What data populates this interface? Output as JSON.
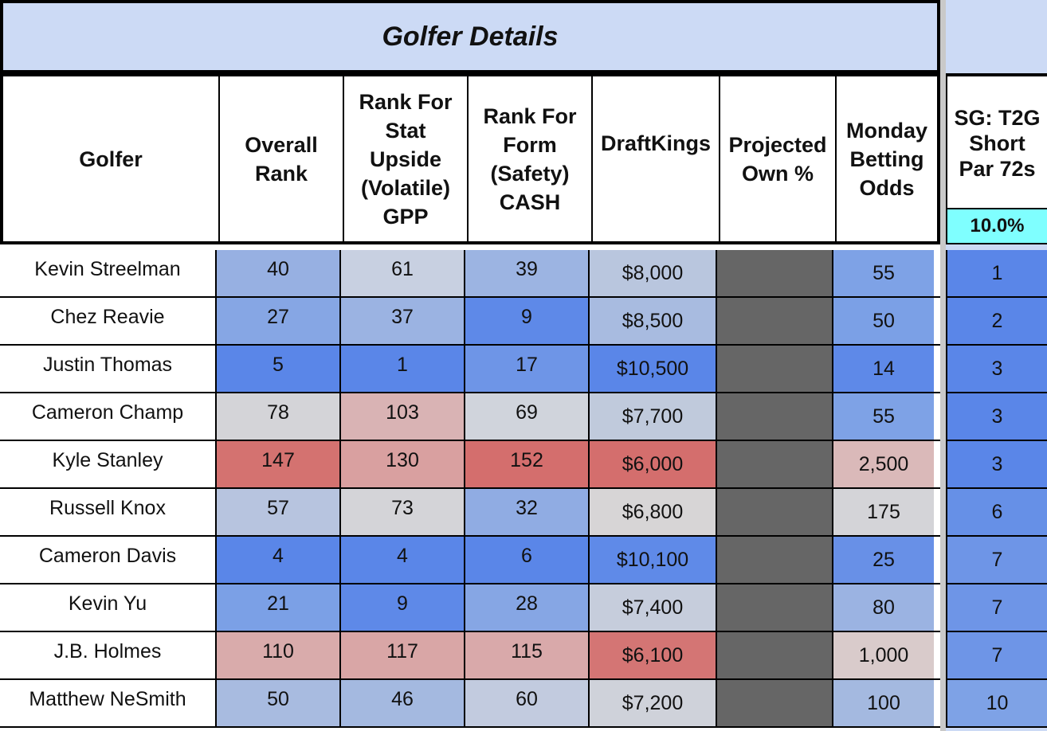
{
  "title": "Golfer Details",
  "headers": {
    "golfer": "Golfer",
    "overall_rank": "Overall Rank",
    "stat_upside": "Rank For Stat Upside (Volatile) GPP",
    "form_safety": "Rank For Form (Safety) CASH",
    "draftkings": "DraftKings",
    "projected_own": "Projected Own %",
    "betting_odds": "Monday Betting Odds",
    "sg_t2g": "SG: T2G Short Par 72s",
    "sg_weight": "10.0%"
  },
  "colors": {
    "blue_strong": "#5a86e8",
    "blue_mid": "#7ea2e6",
    "blue_light": "#a4b9e0",
    "neutral": "#d4d4d8",
    "red_light": "#d9a9aa",
    "red_strong": "#d46e6d",
    "own_gray": "#666666"
  },
  "rows": [
    {
      "golfer": "Kevin Streelman",
      "overall": "40",
      "upside": "61",
      "form": "39",
      "dk": "$8,000",
      "odds": "55",
      "sg": "1",
      "c": [
        "#97b0e2",
        "#c8d0e1",
        "#9cb4e2",
        "#b9c6de",
        "#7ea2e6",
        "#5a86e8"
      ]
    },
    {
      "golfer": "Chez Reavie",
      "overall": "27",
      "upside": "37",
      "form": "9",
      "dk": "$8,500",
      "odds": "50",
      "sg": "2",
      "c": [
        "#86a6e4",
        "#9bb3e2",
        "#5e89e8",
        "#a8bbe0",
        "#7ba0e6",
        "#5a86e8"
      ]
    },
    {
      "golfer": "Justin Thomas",
      "overall": "5",
      "upside": "1",
      "form": "17",
      "dk": "$10,500",
      "odds": "14",
      "sg": "3",
      "c": [
        "#5a86e8",
        "#5a86e8",
        "#6e95e7",
        "#5a86e8",
        "#5e89e8",
        "#5a86e8"
      ]
    },
    {
      "golfer": "Cameron Champ",
      "overall": "78",
      "upside": "103",
      "form": "69",
      "dk": "$7,700",
      "odds": "55",
      "sg": "3",
      "c": [
        "#d4d4d8",
        "#d9b3b4",
        "#d0d4dc",
        "#c0cadc",
        "#7ea2e6",
        "#5a86e8"
      ]
    },
    {
      "golfer": "Kyle Stanley",
      "overall": "147",
      "upside": "130",
      "form": "152",
      "dk": "$6,000",
      "odds": "2,500",
      "sg": "3",
      "c": [
        "#d47270",
        "#d9a0a0",
        "#d46e6d",
        "#d46e6d",
        "#dab9b9",
        "#5a86e8"
      ]
    },
    {
      "golfer": "Russell Knox",
      "overall": "57",
      "upside": "73",
      "form": "32",
      "dk": "$6,800",
      "odds": "175",
      "sg": "6",
      "c": [
        "#b7c4df",
        "#d4d4d8",
        "#90ace3",
        "#d7d5d6",
        "#d4d4d8",
        "#6690e7"
      ]
    },
    {
      "golfer": "Cameron Davis",
      "overall": "4",
      "upside": "4",
      "form": "6",
      "dk": "$10,100",
      "odds": "25",
      "sg": "7",
      "c": [
        "#5a86e8",
        "#5a86e8",
        "#5a86e8",
        "#5f8ae8",
        "#6890e7",
        "#6e95e7"
      ]
    },
    {
      "golfer": "Kevin Yu",
      "overall": "21",
      "upside": "9",
      "form": "28",
      "dk": "$7,400",
      "odds": "80",
      "sg": "7",
      "c": [
        "#7ba0e6",
        "#5e89e8",
        "#86a6e4",
        "#c6cddc",
        "#9bb3e2",
        "#6e95e7"
      ]
    },
    {
      "golfer": "J.B. Holmes",
      "overall": "110",
      "upside": "117",
      "form": "115",
      "dk": "$6,100",
      "odds": "1,000",
      "sg": "7",
      "c": [
        "#d9abab",
        "#d9a6a6",
        "#d9a9aa",
        "#d47574",
        "#d9cbcb",
        "#6e95e7"
      ]
    },
    {
      "golfer": "Matthew NeSmith",
      "overall": "50",
      "upside": "46",
      "form": "60",
      "dk": "$7,200",
      "odds": "100",
      "sg": "10",
      "c": [
        "#a8bbe0",
        "#a4b9e0",
        "#c2cbdf",
        "#cfd2da",
        "#a4b9e0",
        "#7ea2e6"
      ]
    }
  ]
}
